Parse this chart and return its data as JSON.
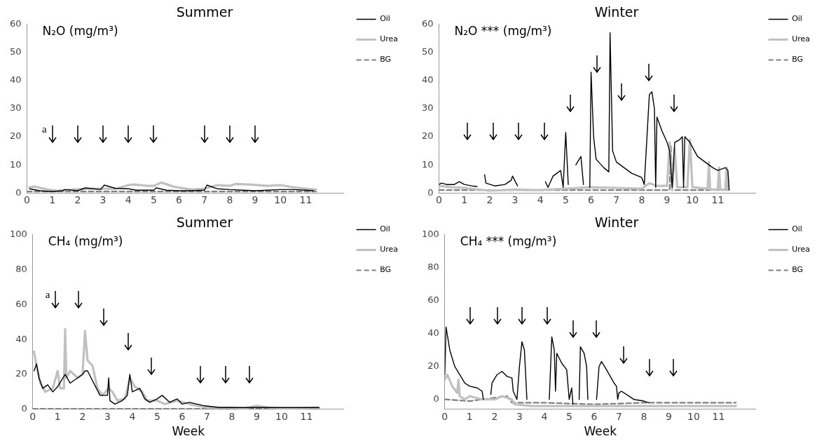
{
  "chart_data": [
    {
      "type": "line",
      "title": "Summer",
      "ylabel": "N₂O (mg/m³)",
      "xlim": [
        0,
        12.5
      ],
      "xticks": [
        0,
        1,
        2,
        3,
        4,
        5,
        6,
        7,
        8,
        9,
        10,
        11
      ],
      "ylim": [
        0,
        60
      ],
      "yticks": [
        0,
        10,
        20,
        30,
        40,
        50,
        60
      ],
      "grid": false,
      "legend": "right",
      "marker": "none",
      "series": [
        {
          "name": "Oil",
          "color": "#000000",
          "x": [
            0.1,
            0.5,
            1,
            1.4,
            1.5,
            2,
            2.3,
            2.9,
            3.05,
            3.5,
            4,
            4.3,
            5,
            5.1,
            5.5,
            6,
            6.5,
            7,
            7.1,
            7.5,
            8,
            8.5,
            9,
            9.5,
            10,
            10.5,
            11,
            11.3
          ],
          "values": [
            1.5,
            0.8,
            0.5,
            0.8,
            1.2,
            0.8,
            1.8,
            1.2,
            2.8,
            1.6,
            1.5,
            1,
            1,
            1.8,
            1,
            0.8,
            0.8,
            1,
            2.8,
            1.5,
            1.2,
            1,
            0.8,
            1,
            1.2,
            1.2,
            1,
            0.8
          ]
        },
        {
          "name": "Urea",
          "color": "#c0c0c0",
          "x": [
            0.1,
            0.3,
            0.8,
            1.2,
            1.8,
            2.5,
            3,
            3.5,
            4,
            4.2,
            4.8,
            5,
            5.3,
            5.8,
            6.5,
            7,
            7.5,
            8,
            8.2,
            8.8,
            9.5,
            10,
            10.5,
            11,
            11.4
          ],
          "values": [
            2,
            2.3,
            1.2,
            0.8,
            1.2,
            1.5,
            1.5,
            1.5,
            2.8,
            3,
            2.5,
            2.5,
            3.7,
            2.2,
            1.2,
            1.5,
            2.8,
            2.5,
            3.2,
            3,
            2.5,
            2.8,
            2,
            1.5,
            1.2
          ]
        },
        {
          "name": "BG",
          "color": "#808080",
          "line_style": "dashed",
          "x": [
            0,
            2,
            4,
            6,
            8,
            10,
            11.4
          ],
          "values": [
            0.5,
            0.5,
            0.5,
            0.5,
            0.5,
            0.5,
            0.5
          ]
        }
      ],
      "annotations": [
        "a"
      ]
    },
    {
      "type": "line",
      "title": "Winter",
      "ylabel": "N₂O *** (mg/m³)",
      "xlim": [
        0,
        12.5
      ],
      "xticks": [
        0,
        1,
        2,
        3,
        4,
        5,
        6,
        7,
        8,
        9,
        10,
        11
      ],
      "ylim": [
        0,
        60
      ],
      "yticks": [
        0,
        10,
        20,
        30,
        40,
        50,
        60
      ],
      "grid": false,
      "legend": "right",
      "marker": "none",
      "series": [
        {
          "name": "Oil",
          "color": "#000000",
          "x": [
            0,
            0.1,
            0.3,
            0.6,
            0.8,
            1,
            1.3,
            1.5,
            1.55,
            1.8,
            1.85,
            2.2,
            2.6,
            2.85,
            2.9,
            3.1,
            3.15,
            4.2,
            4.3,
            4.5,
            4.8,
            4.9,
            5,
            5.1,
            5.15,
            5.4,
            5.6,
            5.7,
            5.75,
            5.95,
            6,
            6.1,
            6.2,
            6.5,
            6.7,
            6.75,
            6.85,
            7,
            7.3,
            7.6,
            8,
            8.1,
            8.3,
            8.4,
            8.5,
            8.55,
            8.6,
            8.8,
            9,
            9.1,
            9.2,
            9.3,
            9.5,
            9.6,
            9.65,
            9.7,
            9.9,
            10.2,
            10.5,
            10.8,
            11,
            11.3,
            11.4,
            11.45
          ],
          "values": [
            3,
            3.5,
            3,
            3,
            4,
            3,
            2.5,
            2.3,
            null,
            6.5,
            3.5,
            2.5,
            3,
            4.5,
            6,
            2.5,
            null,
            4,
            2,
            6,
            8,
            2,
            21.5,
            3,
            null,
            10,
            13,
            3,
            null,
            2,
            43,
            20,
            12,
            9,
            7.5,
            57,
            15,
            11,
            9,
            7,
            5.5,
            3,
            35,
            36,
            30,
            2,
            27,
            22,
            18,
            15,
            2,
            18,
            19,
            20,
            2,
            20,
            18,
            13,
            11,
            9,
            8,
            9,
            8,
            1
          ]
        },
        {
          "name": "Urea",
          "color": "#c0c0c0",
          "x": [
            0,
            0.5,
            1,
            2,
            3,
            4,
            5,
            6,
            7,
            8,
            8.3,
            8.6,
            9,
            9.1,
            9.2,
            9.3,
            9.4,
            9.8,
            9.9,
            10,
            10.6,
            10.65,
            10.7,
            11,
            11.05,
            11.1,
            11.3,
            11.35,
            11.4
          ],
          "values": [
            2.5,
            2,
            1.8,
            0.8,
            1.2,
            1,
            1.5,
            2,
            1.8,
            1.5,
            3.5,
            2.5,
            2.5,
            18,
            1,
            16,
            2,
            2,
            19,
            2,
            1.5,
            11,
            1.2,
            1.2,
            9,
            1.2,
            1.2,
            9,
            1
          ]
        },
        {
          "name": "BG",
          "color": "#808080",
          "line_style": "dashed",
          "x": [
            0,
            4,
            8,
            9.1,
            9.15,
            9.2,
            11.4
          ],
          "values": [
            1,
            1,
            1,
            1,
            17,
            1,
            1
          ]
        }
      ]
    },
    {
      "type": "line",
      "title": "Summer",
      "ylabel": "CH₄ (mg/m³)",
      "xlabel": "Week",
      "xlim": [
        0,
        12.5
      ],
      "xticks": [
        0,
        1,
        2,
        3,
        4,
        5,
        6,
        7,
        8,
        9,
        10,
        11
      ],
      "ylim": [
        0,
        100
      ],
      "yticks": [
        0,
        20,
        40,
        60,
        80,
        100
      ],
      "grid": false,
      "legend": "right",
      "marker": "none",
      "series": [
        {
          "name": "Oil",
          "color": "#000000",
          "x": [
            0.05,
            0.15,
            0.25,
            0.4,
            0.6,
            0.8,
            1,
            1.3,
            1.5,
            1.8,
            2,
            2.1,
            2.2,
            2.7,
            3,
            3.05,
            3.1,
            3.3,
            3.6,
            3.8,
            3.9,
            4,
            4.3,
            4.5,
            4.7,
            5,
            5.2,
            5.5,
            5.8,
            6,
            6.3,
            6.6,
            6.9,
            7.5,
            8.5,
            9.5,
            10.5,
            11.5
          ],
          "values": [
            22,
            26,
            18,
            12,
            14,
            10,
            13,
            20,
            15,
            18,
            20,
            22,
            22,
            8,
            8,
            18,
            5,
            3,
            5,
            8,
            20,
            10,
            12,
            6,
            4,
            6,
            8,
            4,
            6,
            3,
            4,
            3,
            2,
            1,
            1,
            1,
            1,
            1
          ]
        },
        {
          "name": "Urea",
          "color": "#c0c0c0",
          "x": [
            0.05,
            0.15,
            0.3,
            0.5,
            0.8,
            1,
            1.1,
            1.25,
            1.3,
            1.35,
            1.5,
            1.8,
            2,
            2.1,
            2.2,
            2.4,
            2.6,
            2.8,
            3.05,
            3.2,
            3.4,
            3.7,
            3.9,
            4.1,
            4.4,
            4.6,
            5,
            5.3,
            5.8,
            6.3,
            7,
            7.5,
            8,
            8.5,
            9,
            9.5,
            10,
            10.5,
            11.5
          ],
          "values": [
            33,
            25,
            15,
            10,
            12,
            22,
            12,
            12,
            46,
            18,
            22,
            18,
            20,
            45,
            28,
            25,
            12,
            8,
            12,
            10,
            5,
            6,
            18,
            13,
            10,
            5,
            5,
            3,
            5,
            3,
            1,
            1,
            1,
            0.5,
            2,
            1,
            0.5,
            0.5,
            1
          ]
        },
        {
          "name": "BG",
          "color": "#808080",
          "line_style": "dashed",
          "x": [
            0,
            2,
            4,
            6,
            8,
            10,
            11.5
          ],
          "values": [
            0.3,
            0.3,
            0.3,
            0.3,
            0.3,
            0.3,
            0.3
          ]
        }
      ],
      "annotations": [
        "a"
      ]
    },
    {
      "type": "line",
      "title": "Winter",
      "ylabel": "CH₄ *** (mg/m³)",
      "xlabel": "Week",
      "xlim": [
        0,
        12.5
      ],
      "xticks": [
        0,
        1,
        2,
        3,
        4,
        5,
        6,
        7,
        8,
        9,
        10,
        11
      ],
      "ylim": [
        -6,
        100
      ],
      "yticks": [
        0,
        20,
        40,
        60,
        80,
        100
      ],
      "grid": false,
      "legend": "right",
      "marker": "none",
      "series": [
        {
          "name": "Oil",
          "color": "#000000",
          "x": [
            0,
            0.05,
            0.2,
            0.4,
            0.6,
            0.8,
            1,
            1.3,
            1.5,
            1.55,
            1.6,
            1.85,
            1.9,
            2.1,
            2.3,
            2.5,
            2.7,
            2.75,
            2.9,
            3,
            3.1,
            3.2,
            3.3,
            3.35,
            4.2,
            4.3,
            4.4,
            4.45,
            4.5,
            4.7,
            4.9,
            5,
            5.1,
            5.15,
            5.2,
            5.4,
            5.45,
            5.6,
            5.7,
            5.75,
            5.8,
            6.1,
            6.2,
            6.3,
            6.5,
            6.8,
            6.9,
            6.95,
            7,
            7.1,
            7.3,
            7.6,
            8,
            8.2
          ],
          "values": [
            15,
            44,
            30,
            20,
            15,
            10,
            8,
            7,
            5,
            0,
            null,
            3,
            10,
            15,
            17,
            14,
            13,
            5,
            0,
            20,
            35,
            30,
            0,
            null,
            0,
            38,
            30,
            5,
            28,
            22,
            18,
            0,
            7,
            -3,
            null,
            0,
            32,
            28,
            20,
            0,
            null,
            0,
            20,
            23,
            18,
            10,
            8,
            0,
            4,
            5,
            3,
            0,
            -1,
            -2
          ]
        },
        {
          "name": "Urea",
          "color": "#c0c0c0",
          "x": [
            0,
            0.1,
            0.3,
            0.5,
            0.55,
            0.6,
            0.8,
            1,
            1.5,
            2,
            2.3,
            2.7,
            2.8,
            3.5,
            4.5,
            5.5,
            6.5,
            7.5,
            8.5,
            9.5,
            10.5,
            11.7
          ],
          "values": [
            12,
            15,
            8,
            4,
            12,
            2,
            0,
            2,
            0,
            0,
            2,
            0,
            -3,
            -4,
            -4,
            -4,
            -4,
            -4,
            -4,
            -4,
            -4,
            -4
          ]
        },
        {
          "name": "BG",
          "color": "#808080",
          "line_style": "dashed",
          "x": [
            0,
            1,
            2,
            2.5,
            2.7,
            4,
            6,
            8,
            10,
            11.7
          ],
          "values": [
            0,
            -1,
            1,
            2,
            -2,
            -2,
            -3,
            -2,
            -2,
            -2
          ]
        }
      ]
    }
  ]
}
